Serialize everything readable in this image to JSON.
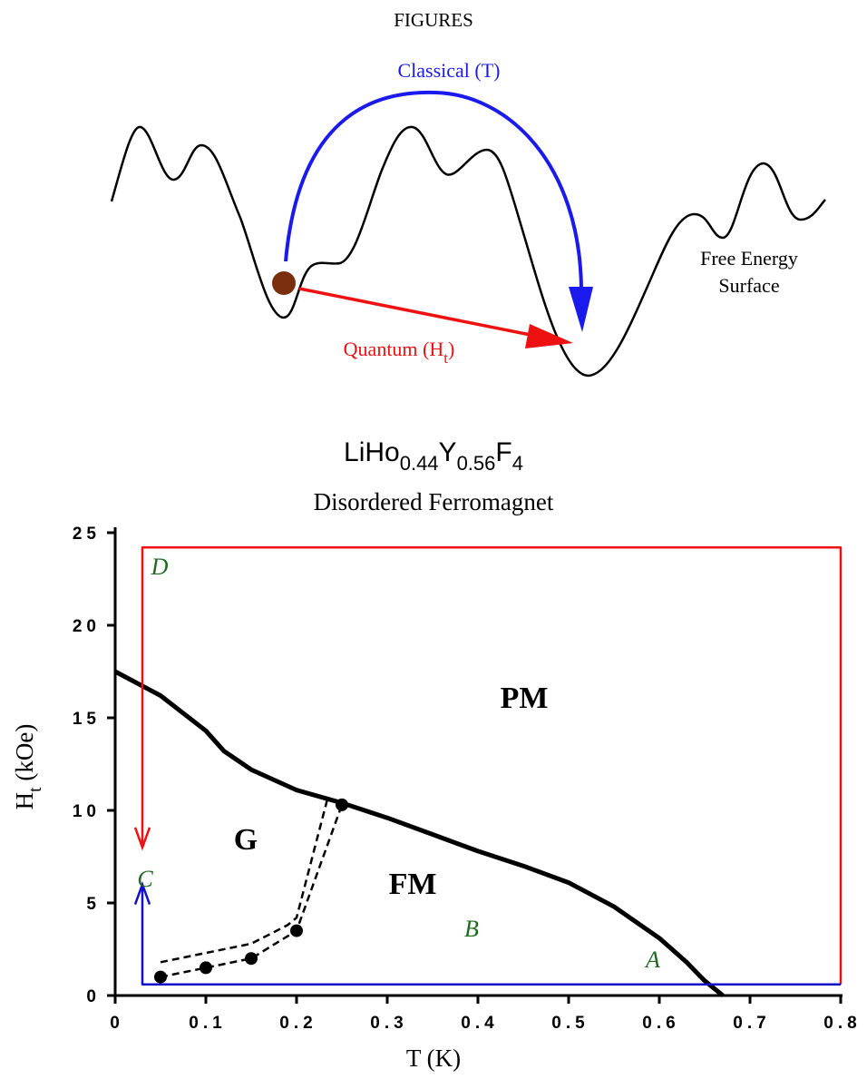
{
  "header": "FIGURES",
  "diagram": {
    "classical_label": "Classical (T)",
    "quantum_label": [
      "Quantum (H",
      "t",
      ")"
    ],
    "surface_label": [
      "Free Energy",
      "Surface"
    ]
  },
  "chart_data": {
    "type": "line",
    "title": [
      "LiHo",
      "0.44",
      "Y",
      "0.56",
      "F",
      "4"
    ],
    "subtitle": "Disordered Ferromagnet",
    "xlabel": "T (K)",
    "ylabel": [
      "H",
      "t",
      " (kOe)"
    ],
    "xlim": [
      0,
      0.8
    ],
    "ylim": [
      0,
      25
    ],
    "xticks": [
      0,
      0.1,
      0.2,
      0.3,
      0.4,
      0.5,
      0.6,
      0.7,
      0.8
    ],
    "yticks": [
      0,
      5,
      10,
      15,
      20,
      25
    ],
    "annotations": [
      "PM",
      "G",
      "FM",
      "A",
      "B",
      "C",
      "D"
    ],
    "series": [
      {
        "color": "#000000",
        "x": [
          0,
          0.05,
          0.1,
          0.12,
          0.15,
          0.2,
          0.25,
          0.3,
          0.35,
          0.4,
          0.45,
          0.5,
          0.55,
          0.6,
          0.63,
          0.65,
          0.67
        ],
        "values": [
          17.5,
          16.2,
          14.3,
          13.2,
          12.2,
          11.1,
          10.4,
          9.6,
          8.7,
          7.8,
          7.0,
          6.1,
          4.8,
          3.1,
          1.8,
          0.8,
          0
        ],
        "width": 5
      },
      {
        "color": "#000000",
        "x": [
          0.05,
          0.1,
          0.15,
          0.2,
          0.25
        ],
        "values": [
          1,
          1.5,
          2,
          3.5,
          10.3
        ],
        "dashed": true,
        "markers": true,
        "width": 2.5
      },
      {
        "color": "#000000",
        "x": [
          0.05,
          0.15,
          0.19,
          0.2,
          0.235
        ],
        "values": [
          1.8,
          2.8,
          3.8,
          4.2,
          10.8
        ],
        "dashed": true,
        "width": 2.5
      },
      {
        "color": "#ee1111",
        "x": [
          0.8,
          0.8,
          0.03,
          0.03
        ],
        "values": [
          0.6,
          24.2,
          24.2,
          8
        ],
        "arrow": true,
        "width": 2.5
      },
      {
        "color": "#1111cc",
        "x": [
          0.8,
          0.03,
          0.03
        ],
        "values": [
          0.6,
          0.6,
          6
        ],
        "arrow": true,
        "width": 2.5
      }
    ]
  }
}
